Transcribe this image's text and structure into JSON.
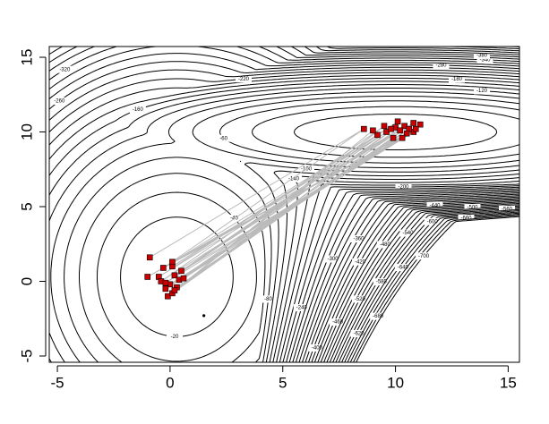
{
  "chart_data": {
    "type": "contour",
    "xlim": [
      -5.36,
      15.5
    ],
    "ylim": [
      -5.42,
      15.72
    ],
    "xticks": [
      -5,
      0,
      5,
      10,
      15
    ],
    "yticks": [
      -5,
      0,
      5,
      10,
      15
    ],
    "contour_levels": [
      -20,
      -40,
      -60,
      -80,
      -100,
      -120,
      -140,
      -160,
      -180,
      -200,
      -220,
      -240,
      -260,
      -280,
      -300,
      -320,
      -340,
      -360,
      -380,
      -400,
      -420,
      -440,
      -460,
      -480,
      -500,
      -520,
      -540,
      -560,
      -580,
      -600,
      -620,
      -640,
      -660,
      -680,
      -700
    ],
    "contour_color": "#000000",
    "path_color": "#bbbbbb",
    "series": [
      {
        "name": "samples",
        "color": "#cc0000",
        "x": [
          -0.9,
          8.6,
          -0.3,
          9.2,
          0.1,
          9.6,
          0.5,
          10.1,
          -0.5,
          10.4,
          0.2,
          10.8,
          0.0,
          11.1,
          -0.2,
          10.6,
          0.3,
          9.9,
          -0.1,
          9.0,
          0.1,
          10.0,
          0.4,
          10.5,
          -1.0,
          10.8,
          0.2,
          9.5,
          -0.4,
          10.2,
          0.6,
          10.9,
          0.1,
          10.3,
          -0.2,
          9.8
        ],
        "y": [
          1.6,
          10.2,
          0.9,
          9.8,
          1.0,
          10.0,
          0.7,
          10.7,
          0.3,
          10.4,
          0.4,
          10.0,
          -0.2,
          10.5,
          -0.5,
          10.2,
          -0.4,
          9.6,
          -1.0,
          10.1,
          -0.8,
          10.3,
          0.1,
          9.9,
          0.3,
          10.6,
          -0.6,
          10.4,
          0.0,
          10.1,
          0.2,
          10.2,
          1.3,
          9.6,
          -0.1,
          10.2
        ]
      }
    ],
    "start": {
      "x": 1.5,
      "y": -2.3
    }
  }
}
